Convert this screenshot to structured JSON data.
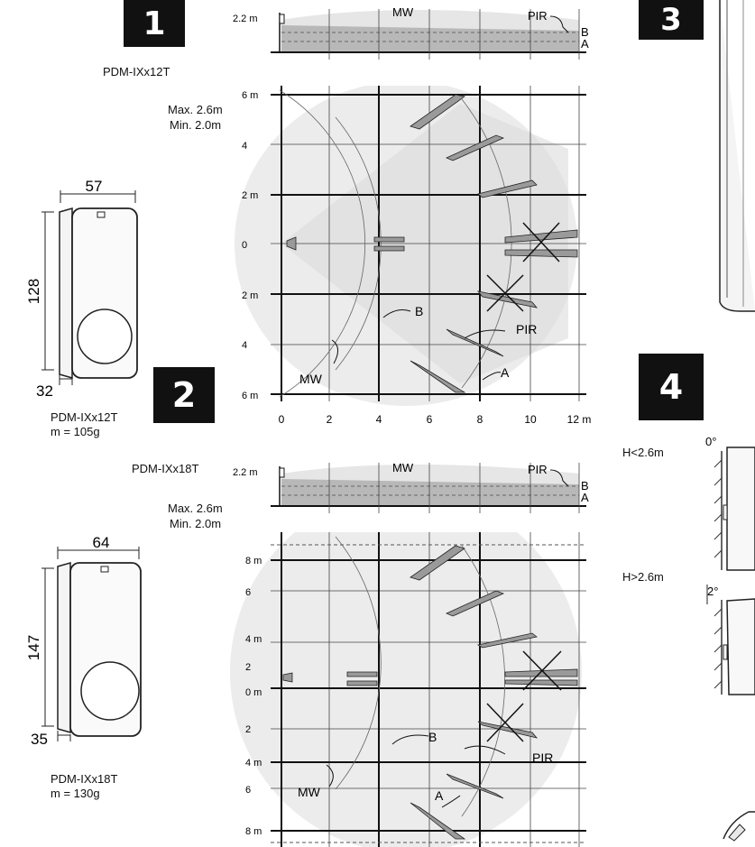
{
  "sections": {
    "s1": "1",
    "s2": "2",
    "s3": "3",
    "s4": "4"
  },
  "model_12": {
    "title": "PDM-IXx12T",
    "mount_max": "Max. 2.6m",
    "mount_min": "Min. 2.0m",
    "dim_width": "57",
    "dim_height": "128",
    "dim_depth": "32",
    "name": "PDM-IXx12T",
    "mass": "m = 105g"
  },
  "model_18": {
    "title": "PDM-IXx18T",
    "mount_max": "Max. 2.6m",
    "mount_min": "Min. 2.0m",
    "dim_width": "64",
    "dim_height": "147",
    "dim_depth": "35",
    "name": "PDM-IXx18T",
    "mass": "m = 130g"
  },
  "side_view": {
    "height_label": "2.2 m",
    "mw": "MW",
    "pir": "PIR",
    "zone_b": "B",
    "zone_a": "A"
  },
  "top_view_12": {
    "y_labels": [
      "6 m",
      "4",
      "2 m",
      "0",
      "2 m",
      "4",
      "6 m"
    ],
    "x_labels": [
      "0",
      "2",
      "4",
      "6",
      "8",
      "10",
      "12 m"
    ],
    "mw": "MW",
    "pir": "PIR",
    "zone_b": "B",
    "zone_a": "A"
  },
  "top_view_18": {
    "y_labels": [
      "8 m",
      "6",
      "4 m",
      "2",
      "0 m",
      "2",
      "4 m",
      "6",
      "8 m"
    ],
    "mw": "MW",
    "pir": "PIR",
    "zone_b": "B",
    "zone_a": "A"
  },
  "angle": {
    "h_low": "H<2.6m",
    "h_high": "H>2.6m",
    "deg0": "0°",
    "deg2": "2°"
  }
}
